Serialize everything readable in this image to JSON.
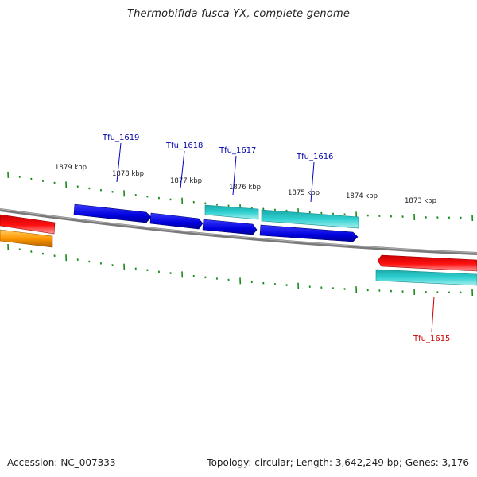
{
  "title": "Thermobifida fusca YX, complete genome",
  "footer": {
    "accession_label": "Accession:",
    "accession": "NC_007333",
    "topology_label": "Topology:",
    "topology": "circular",
    "length_label": "Length:",
    "length": "3,642,249 bp",
    "genes_label": "Genes:",
    "genes": "3,176"
  },
  "colors": {
    "backbone": "#808080",
    "tick": "#1a8a1a",
    "blue_gene": "#0000dd",
    "cyan_gene": "#22c8c8",
    "red_gene": "#ee0000",
    "orange_gene": "#ff9900",
    "label_blue": "#0000aa",
    "label_red": "#cc0000"
  },
  "scale_labels": [
    "1879 kbp",
    "1878 kbp",
    "1877 kbp",
    "1876 kbp",
    "1875 kbp",
    "1874 kbp",
    "1873 kbp"
  ],
  "gene_labels": [
    {
      "name": "Tfu_1619",
      "strand": "forward"
    },
    {
      "name": "Tfu_1618",
      "strand": "forward"
    },
    {
      "name": "Tfu_1617",
      "strand": "forward"
    },
    {
      "name": "Tfu_1616",
      "strand": "forward"
    },
    {
      "name": "Tfu_1615",
      "strand": "reverse"
    }
  ]
}
